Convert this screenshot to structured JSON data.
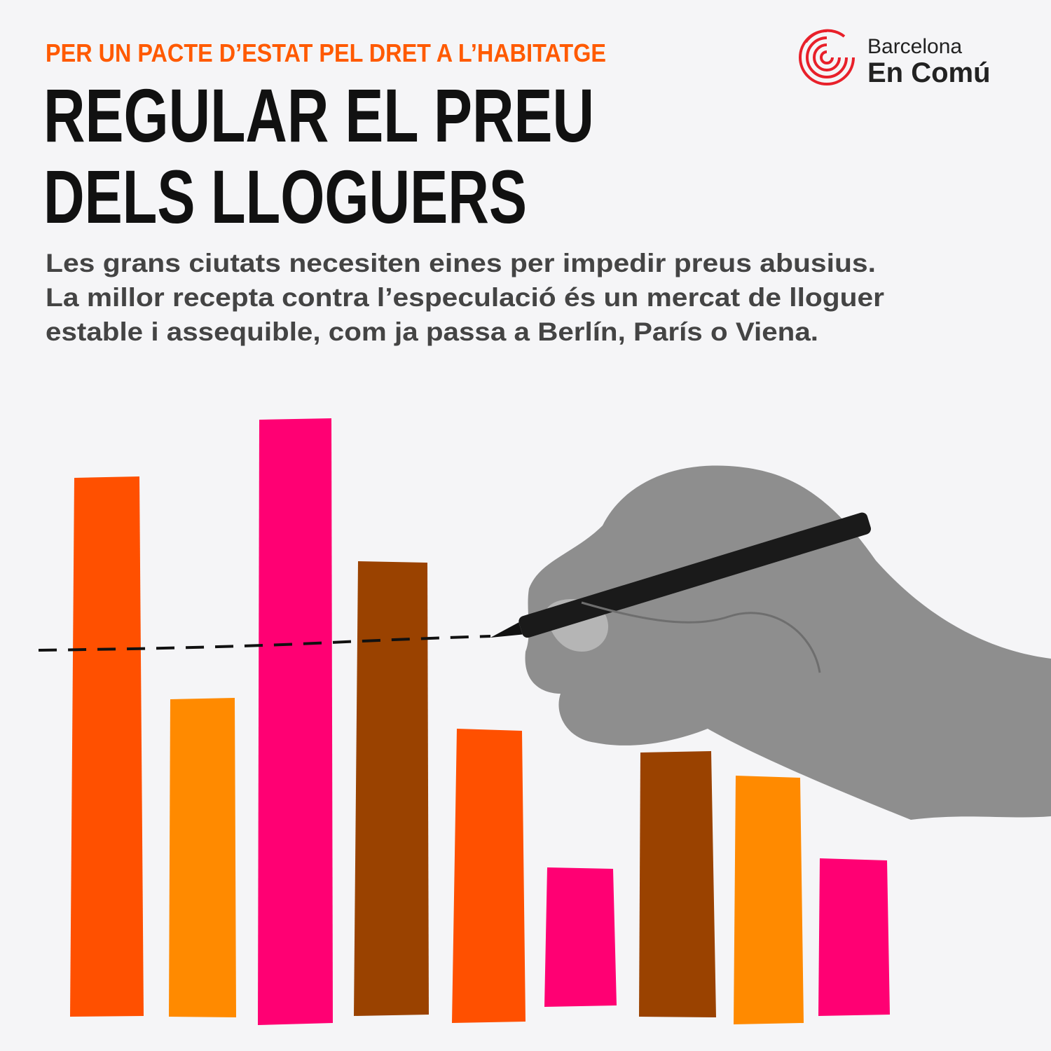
{
  "header": {
    "kicker": "PER UN PACTE D’ESTAT PEL DRET A L’HABITATGE",
    "title": [
      "REGULAR EL PREU",
      "DELS LLOGUERS"
    ]
  },
  "body": {
    "lines": [
      "Les grans ciutats necesiten eines per impedir preus abusius.",
      "La millor recepta contra l’especulació és un mercat de lloguer",
      "estable i assequible, com ja passa a Berlín, París o Viena."
    ]
  },
  "logo": {
    "line1": "Barcelona",
    "line2": "En Comú"
  }
}
